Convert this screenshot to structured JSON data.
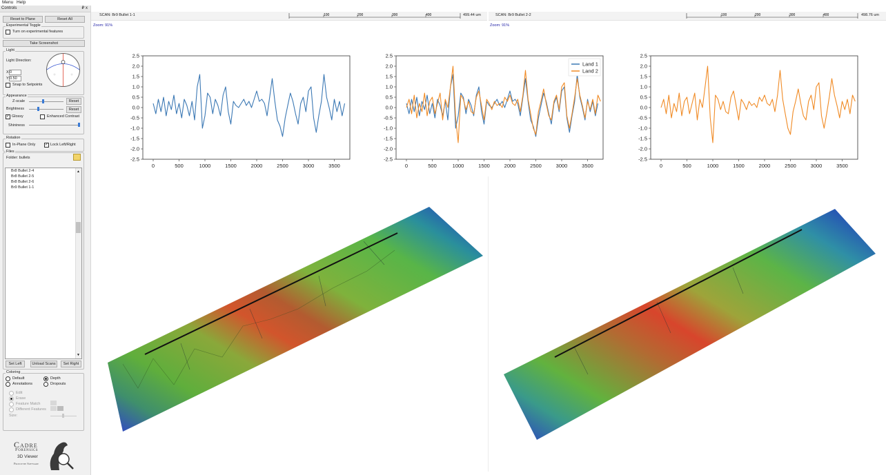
{
  "menu": {
    "items": [
      "Menu",
      "Help"
    ]
  },
  "controls": {
    "title": "Controls",
    "close_glyphs": "₽ x",
    "reset_to_plane": "Reset to Plane",
    "reset_all": "Reset All",
    "experimental": {
      "title": "Experimental Toggle",
      "checkbox": "Turn on experimental features",
      "checked": false
    },
    "take_screenshot": "Take Screenshot",
    "light": {
      "title": "Light",
      "direction_label": "Light Direction:",
      "x_label": "X:",
      "x_value": "0",
      "y_label": "Y:",
      "y_value": "0.50",
      "snap": "Snap to Setpoints",
      "snap_checked": false
    },
    "appearance": {
      "title": "Appearance",
      "zscale": "Z-scale",
      "zscale_level": 0.4,
      "brightness": "Brightness",
      "brightness_level": 0.25,
      "reset": "Reset",
      "glossy": "Glossy",
      "glossy_checked": true,
      "enhanced": "Enhanced Contrast",
      "enhanced_checked": false,
      "shininess": "Shininess",
      "shininess_level": 1.0
    },
    "rotation": {
      "title": "Rotation",
      "in_plane": "In-Plane Only",
      "in_plane_checked": false,
      "lock": "Lock Left/Right",
      "lock_checked": true
    },
    "files": {
      "title": "Files",
      "folder_label": "Folder: bullets",
      "items": [
        "Br8 Bullet 2-4",
        "Br8 Bullet 2-5",
        "Br8 Bullet 2-6",
        "Br9 Bullet 1-1"
      ],
      "set_left": "Set Left",
      "unload": "Unload Scans",
      "set_right": "Set Right"
    },
    "coloring": {
      "title": "Coloring",
      "default": "Default",
      "depth": "Depth",
      "annotations": "Annotations",
      "dropouts": "Dropouts",
      "selected": "Depth"
    },
    "edit": {
      "edit": "Edit",
      "erase": "Erase",
      "feature_match": "Feature Match",
      "different": "Different Features",
      "size": "Size:"
    },
    "logo": {
      "line1": "Cadre",
      "line2": "Forensics",
      "line3": "3D Viewer",
      "line4": "Prototype Software"
    }
  },
  "scans": {
    "left": {
      "label": "SCAN: Br9 Bullet 1-1",
      "ticks": [
        "100",
        "200",
        "300",
        "400"
      ],
      "scale": "499.44 um",
      "zoom": "Zoom: 91%"
    },
    "right": {
      "label": "SCAN: Br9 Bullet 2-2",
      "ticks": [
        "100",
        "200",
        "300",
        "400"
      ],
      "scale": "498.76 um",
      "zoom": "Zoom: 91%"
    }
  },
  "colors": {
    "land1": "#3b78b4",
    "land2": "#f08a24",
    "accent": "#3a7bd5"
  },
  "chart_data": [
    {
      "type": "line",
      "xlim": [
        -200,
        3800
      ],
      "ylim": [
        -2.5,
        2.5
      ],
      "xticks": [
        0,
        500,
        1000,
        1500,
        2000,
        2500,
        3000,
        3500
      ],
      "yticks": [
        -2.5,
        -2.0,
        -1.5,
        -1.0,
        -0.5,
        0.0,
        0.5,
        1.0,
        1.5,
        2.0,
        2.5
      ],
      "grid": false,
      "series": [
        {
          "color": "#3b78b4",
          "x": [
            0,
            50,
            100,
            150,
            200,
            250,
            300,
            350,
            400,
            450,
            500,
            550,
            600,
            650,
            700,
            750,
            800,
            850,
            900,
            950,
            1000,
            1050,
            1100,
            1150,
            1200,
            1250,
            1300,
            1350,
            1400,
            1450,
            1500,
            1550,
            1600,
            1650,
            1700,
            1750,
            1800,
            1850,
            1900,
            1950,
            2000,
            2050,
            2100,
            2150,
            2200,
            2250,
            2300,
            2350,
            2400,
            2450,
            2500,
            2550,
            2600,
            2650,
            2700,
            2750,
            2800,
            2850,
            2900,
            2950,
            3000,
            3050,
            3100,
            3150,
            3200,
            3250,
            3300,
            3350,
            3400,
            3450,
            3500,
            3550,
            3600,
            3650,
            3700
          ],
          "y": [
            0.2,
            -0.3,
            0.4,
            -0.2,
            0.5,
            -0.4,
            0.3,
            -0.1,
            0.6,
            -0.3,
            0.2,
            -0.5,
            0.4,
            0.1,
            -0.4,
            0.3,
            -0.6,
            1.0,
            1.6,
            -1.0,
            -0.4,
            0.7,
            0.5,
            -0.3,
            0.4,
            0.1,
            -0.4,
            0.6,
            1.0,
            -0.2,
            -0.8,
            0.3,
            0.1,
            0.0,
            0.2,
            0.4,
            0.1,
            0.3,
            0.0,
            0.4,
            0.8,
            0.3,
            0.4,
            0.2,
            -0.4,
            0.5,
            1.4,
            0.3,
            -0.6,
            -0.9,
            -1.4,
            -0.5,
            0.1,
            0.7,
            0.3,
            -0.3,
            -0.8,
            0.2,
            0.5,
            -0.2,
            0.8,
            1.0,
            -0.5,
            -1.2,
            -0.4,
            0.3,
            1.6,
            0.5,
            0.0,
            -0.6,
            0.4,
            -0.2,
            0.3,
            -0.4,
            0.2
          ]
        }
      ]
    },
    {
      "type": "line",
      "xlim": [
        -200,
        3800
      ],
      "ylim": [
        -2.5,
        2.5
      ],
      "xticks": [
        0,
        500,
        1000,
        1500,
        2000,
        2500,
        3000,
        3500
      ],
      "yticks": [
        -2.5,
        -2.0,
        -1.5,
        -1.0,
        -0.5,
        0.0,
        0.5,
        1.0,
        1.5,
        2.0,
        2.5
      ],
      "grid": false,
      "legend": "top-right",
      "series": [
        {
          "name": "Land 1",
          "color": "#3b78b4",
          "x": [
            0,
            50,
            100,
            150,
            200,
            250,
            300,
            350,
            400,
            450,
            500,
            550,
            600,
            650,
            700,
            750,
            800,
            850,
            900,
            950,
            1000,
            1050,
            1100,
            1150,
            1200,
            1250,
            1300,
            1350,
            1400,
            1450,
            1500,
            1550,
            1600,
            1650,
            1700,
            1750,
            1800,
            1850,
            1900,
            1950,
            2000,
            2050,
            2100,
            2150,
            2200,
            2250,
            2300,
            2350,
            2400,
            2450,
            2500,
            2550,
            2600,
            2650,
            2700,
            2750,
            2800,
            2850,
            2900,
            2950,
            3000,
            3050,
            3100,
            3150,
            3200,
            3250,
            3300,
            3350,
            3400,
            3450,
            3500,
            3550,
            3600,
            3650,
            3700
          ],
          "y": [
            0.2,
            -0.3,
            0.4,
            -0.2,
            0.5,
            -0.4,
            0.3,
            -0.1,
            0.6,
            -0.3,
            0.2,
            -0.5,
            0.4,
            0.1,
            -0.4,
            0.3,
            -0.6,
            1.0,
            1.6,
            -1.0,
            -0.4,
            0.7,
            0.5,
            -0.3,
            0.4,
            0.1,
            -0.4,
            0.6,
            1.0,
            -0.2,
            -0.8,
            0.3,
            0.1,
            0.0,
            0.2,
            0.4,
            0.1,
            0.3,
            0.0,
            0.4,
            0.8,
            0.3,
            0.4,
            0.2,
            -0.4,
            0.5,
            1.4,
            0.3,
            -0.6,
            -0.9,
            -1.4,
            -0.5,
            0.1,
            0.7,
            0.3,
            -0.3,
            -0.8,
            0.2,
            0.5,
            -0.2,
            0.8,
            1.0,
            -0.5,
            -1.2,
            -0.4,
            0.3,
            1.6,
            0.5,
            0.0,
            -0.6,
            0.4,
            -0.2,
            0.3,
            -0.4,
            0.2
          ]
        },
        {
          "name": "Land 2",
          "color": "#f08a24",
          "x": [
            0,
            50,
            100,
            150,
            200,
            250,
            300,
            350,
            400,
            450,
            500,
            550,
            600,
            650,
            700,
            750,
            800,
            850,
            900,
            950,
            1000,
            1050,
            1100,
            1150,
            1200,
            1250,
            1300,
            1350,
            1400,
            1450,
            1500,
            1550,
            1600,
            1650,
            1700,
            1750,
            1800,
            1850,
            1900,
            1950,
            2000,
            2050,
            2100,
            2150,
            2200,
            2250,
            2300,
            2350,
            2400,
            2450,
            2500,
            2550,
            2600,
            2650,
            2700,
            2750,
            2800,
            2850,
            2900,
            2950,
            3000,
            3050,
            3100,
            3150,
            3200,
            3250,
            3300,
            3350,
            3400,
            3450,
            3500,
            3550,
            3600,
            3650,
            3700,
            3750
          ],
          "y": [
            0.0,
            0.4,
            -0.3,
            0.6,
            -0.5,
            0.2,
            -0.2,
            0.7,
            -0.4,
            0.3,
            0.5,
            -0.3,
            0.2,
            0.7,
            -0.6,
            0.4,
            0.0,
            1.0,
            2.0,
            -0.5,
            -1.7,
            0.6,
            0.4,
            -0.1,
            0.3,
            -0.2,
            -0.3,
            0.5,
            0.8,
            0.1,
            -0.6,
            0.4,
            0.2,
            -0.1,
            0.3,
            0.1,
            0.2,
            0.0,
            0.5,
            0.3,
            0.6,
            0.2,
            0.1,
            0.4,
            -0.2,
            0.6,
            1.8,
            0.4,
            -0.3,
            -1.0,
            -1.3,
            -0.2,
            0.3,
            0.9,
            0.2,
            -0.4,
            -0.6,
            0.3,
            0.6,
            -0.1,
            1.0,
            1.2,
            -0.4,
            -1.0,
            -0.3,
            0.5,
            1.4,
            0.6,
            0.1,
            -0.5,
            0.3,
            -0.1,
            0.4,
            -0.3,
            0.6,
            0.3
          ]
        }
      ]
    },
    {
      "type": "line",
      "xlim": [
        -200,
        3800
      ],
      "ylim": [
        -2.5,
        2.5
      ],
      "xticks": [
        0,
        500,
        1000,
        1500,
        2000,
        2500,
        3000,
        3500
      ],
      "yticks": [
        -2.5,
        -2.0,
        -1.5,
        -1.0,
        -0.5,
        0.0,
        0.5,
        1.0,
        1.5,
        2.0,
        2.5
      ],
      "grid": false,
      "series": [
        {
          "color": "#f08a24",
          "x": [
            0,
            50,
            100,
            150,
            200,
            250,
            300,
            350,
            400,
            450,
            500,
            550,
            600,
            650,
            700,
            750,
            800,
            850,
            900,
            950,
            1000,
            1050,
            1100,
            1150,
            1200,
            1250,
            1300,
            1350,
            1400,
            1450,
            1500,
            1550,
            1600,
            1650,
            1700,
            1750,
            1800,
            1850,
            1900,
            1950,
            2000,
            2050,
            2100,
            2150,
            2200,
            2250,
            2300,
            2350,
            2400,
            2450,
            2500,
            2550,
            2600,
            2650,
            2700,
            2750,
            2800,
            2850,
            2900,
            2950,
            3000,
            3050,
            3100,
            3150,
            3200,
            3250,
            3300,
            3350,
            3400,
            3450,
            3500,
            3550,
            3600,
            3650,
            3700,
            3750
          ],
          "y": [
            0.0,
            0.4,
            -0.3,
            0.6,
            -0.5,
            0.2,
            -0.2,
            0.7,
            -0.4,
            0.3,
            0.5,
            -0.3,
            0.2,
            0.7,
            -0.6,
            0.4,
            0.0,
            1.0,
            2.0,
            -0.5,
            -1.7,
            0.6,
            0.4,
            -0.1,
            0.3,
            -0.2,
            -0.3,
            0.5,
            0.8,
            0.1,
            -0.6,
            0.4,
            0.2,
            -0.1,
            0.3,
            0.1,
            0.2,
            0.0,
            0.5,
            0.3,
            0.6,
            0.2,
            0.1,
            0.4,
            -0.2,
            0.6,
            1.8,
            0.4,
            -0.3,
            -1.0,
            -1.3,
            -0.2,
            0.3,
            0.9,
            0.2,
            -0.4,
            -0.6,
            0.3,
            0.6,
            -0.1,
            1.0,
            1.2,
            -0.4,
            -1.0,
            -0.3,
            0.5,
            1.4,
            0.6,
            0.1,
            -0.5,
            0.3,
            -0.1,
            0.4,
            -0.3,
            0.6,
            0.3
          ]
        }
      ]
    }
  ]
}
